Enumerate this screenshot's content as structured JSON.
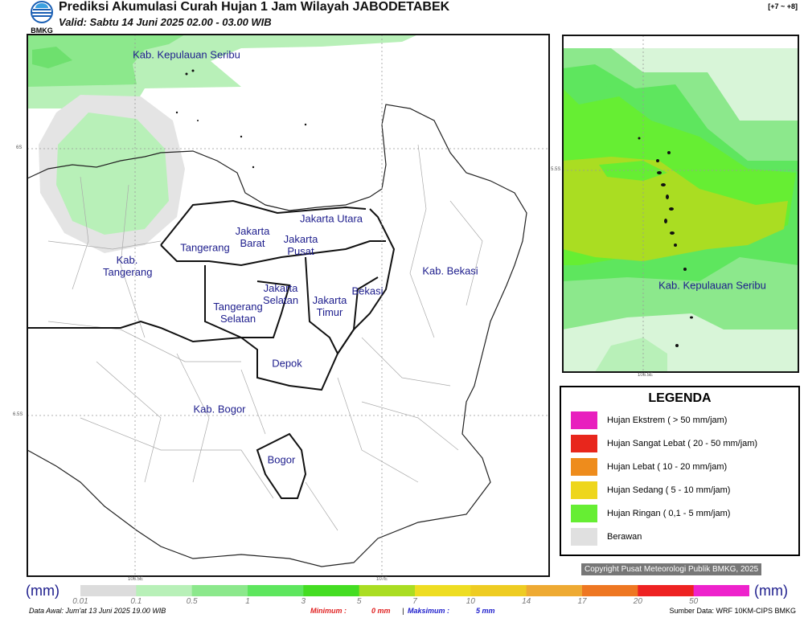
{
  "header": {
    "title": "Prediksi Akumulasi Curah Hujan 1 Jam Wilayah JABODETABEK",
    "valid": "Valid: Sabtu 14 Juni 2025 02.00 - 03.00 WIB",
    "logo": "BMKG",
    "range": "[+7 ~ +8]"
  },
  "map": {
    "labels": [
      "Kab. Kepulauan Seribu",
      "Jakarta Utara",
      "Jakarta Barat",
      "Jakarta Pusat",
      "Tangerang",
      "Kab. Tangerang",
      "Jakarta Selatan",
      "Jakarta Timur",
      "Bekasi",
      "Kab. Bekasi",
      "Tangerang Selatan",
      "Depok",
      "Kab. Bogor",
      "Bogor"
    ],
    "lat_labels": [
      "6S",
      "6.5S"
    ],
    "lon_labels": [
      "106.5E",
      "107E"
    ]
  },
  "inset": {
    "label": "Kab. Kepulauan Seribu",
    "lat_label": "5.5S",
    "lon_label": "106.5E"
  },
  "legend": {
    "title": "LEGENDA",
    "items": [
      {
        "label": "Hujan Ekstrem ( > 50 mm/jam)",
        "color": "#e81fbe"
      },
      {
        "label": "Hujan Sangat Lebat ( 20 - 50 mm/jam)",
        "color": "#e8261c"
      },
      {
        "label": "Hujan Lebat ( 10 - 20 mm/jam)",
        "color": "#ee8c1c"
      },
      {
        "label": "Hujan Sedang ( 5 - 10 mm/jam)",
        "color": "#eed61c"
      },
      {
        "label": "Hujan Ringan ( 0,1 - 5 mm/jam)",
        "color": "#66ee33"
      },
      {
        "label": "Berawan",
        "color": "#e0e0e0"
      }
    ],
    "copyright": "Copyright Pusat Meteorologi Publik BMKG, 2025"
  },
  "colorbar": {
    "unit_left": "(mm)",
    "unit_right": "(mm)",
    "ticks": [
      "0.01",
      "0.1",
      "0.5",
      "1",
      "3",
      "5",
      "7",
      "10",
      "14",
      "17",
      "20",
      "50"
    ],
    "colors": [
      "#dcdcdc",
      "#b8f0b8",
      "#8ce88c",
      "#5ee65e",
      "#44dd22",
      "#aadd22",
      "#eedd22",
      "#eecc22",
      "#eeaa33",
      "#ee7722",
      "#ee2222",
      "#ee22cc"
    ]
  },
  "footer": {
    "data_awal": "Data Awal: Jum'at 13 Juni 2025 19.00 WIB",
    "minimum_label": "Minimum :",
    "minimum": "0 mm",
    "separator": "|",
    "maximum_label": "Maksimum :",
    "maximum": "5 mm",
    "source": "Sumber Data: WRF 10KM-CIPS BMKG"
  }
}
